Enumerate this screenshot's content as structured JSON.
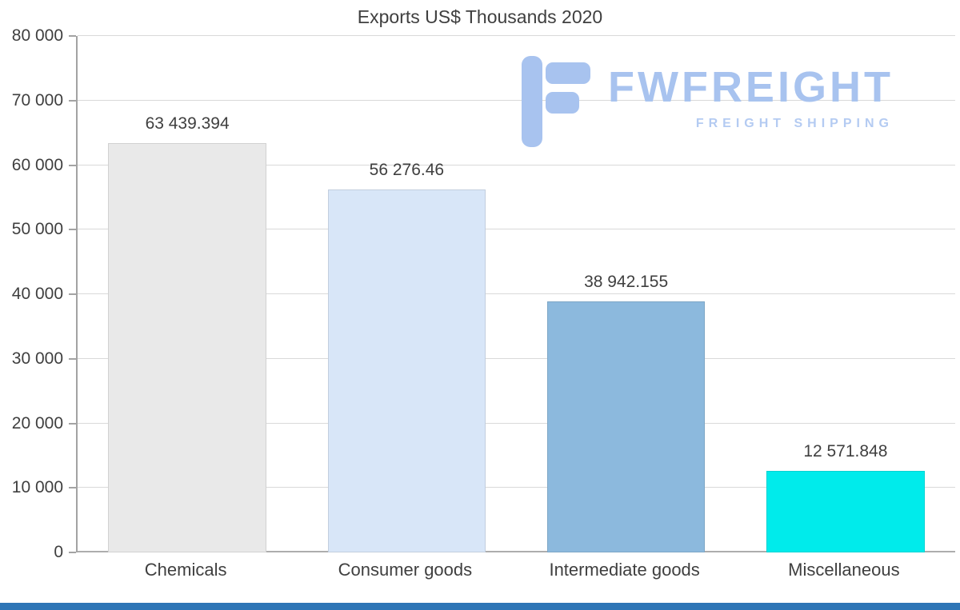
{
  "title": "Exports US$ Thousands 2020",
  "logo": {
    "name": "FWFREIGHT",
    "tagline": "FREIGHT SHIPPING",
    "icon": "stylized-f-logo",
    "color": "#a8c3ef"
  },
  "colors": {
    "background": "#ffffff",
    "text": "#3f3f3f",
    "gridline": "#d9d9d9",
    "axis": "#a3a3a3",
    "footer_bar": "#2e75b6"
  },
  "chart_data": {
    "type": "bar",
    "title": "Exports US$ Thousands 2020",
    "categories": [
      "Chemicals",
      "Consumer goods",
      "Intermediate goods",
      "Miscellaneous"
    ],
    "values": [
      63439.394,
      56276.46,
      38942.155,
      12571.848
    ],
    "value_labels": [
      "63 439.394",
      "56 276.46",
      "38 942.155",
      "12 571.848"
    ],
    "bar_colors": [
      "#e9e9e9",
      "#d8e6f8",
      "#8cb9dd",
      "#00ebeb"
    ],
    "xlabel": "",
    "ylabel": "",
    "ylim": [
      0,
      80000
    ],
    "ytick_step": 10000,
    "ytick_labels": [
      "0",
      "10 000",
      "20 000",
      "30 000",
      "40 000",
      "50 000",
      "60 000",
      "70 000",
      "80 000"
    ],
    "grid": true,
    "legend": false
  }
}
